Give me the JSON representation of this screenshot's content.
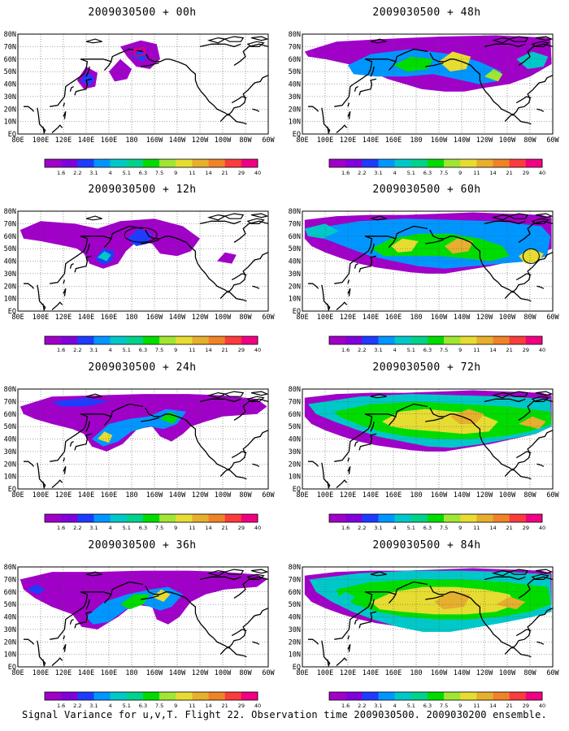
{
  "caption": "Signal Variance for u,v,T. Flight 22. Observation time 2009030500. 2009030200 ensemble.",
  "map": {
    "lon_labels": [
      "80E",
      "100E",
      "120E",
      "140E",
      "160E",
      "180",
      "160W",
      "140W",
      "120W",
      "100W",
      "80W",
      "60W"
    ],
    "lat_labels": [
      "EQ",
      "10N",
      "20N",
      "30N",
      "40N",
      "50N",
      "60N",
      "70N",
      "80N"
    ],
    "lon_range_deg_east": [
      80,
      300
    ],
    "lat_range": [
      0,
      80
    ],
    "gridlines": "dotted"
  },
  "colorbar": {
    "levels": [
      "1.6",
      "2.2",
      "3.1",
      "4",
      "5.1",
      "6.3",
      "7.5",
      "9",
      "11",
      "14",
      "21",
      "29",
      "40"
    ],
    "colors": [
      "#a000c8",
      "#8200dc",
      "#1e3cff",
      "#0096ff",
      "#00c8c8",
      "#00d28c",
      "#00dc00",
      "#a0e632",
      "#e6dc32",
      "#e6af2d",
      "#f08228",
      "#fa3c3c",
      "#f00082"
    ]
  },
  "panels": [
    {
      "title": "2009030500 + 00h"
    },
    {
      "title": "2009030500 + 48h"
    },
    {
      "title": "2009030500 + 12h"
    },
    {
      "title": "2009030500 + 60h"
    },
    {
      "title": "2009030500 + 24h"
    },
    {
      "title": "2009030500 + 72h"
    },
    {
      "title": "2009030500 + 36h"
    },
    {
      "title": "2009030500 + 84h"
    }
  ]
}
